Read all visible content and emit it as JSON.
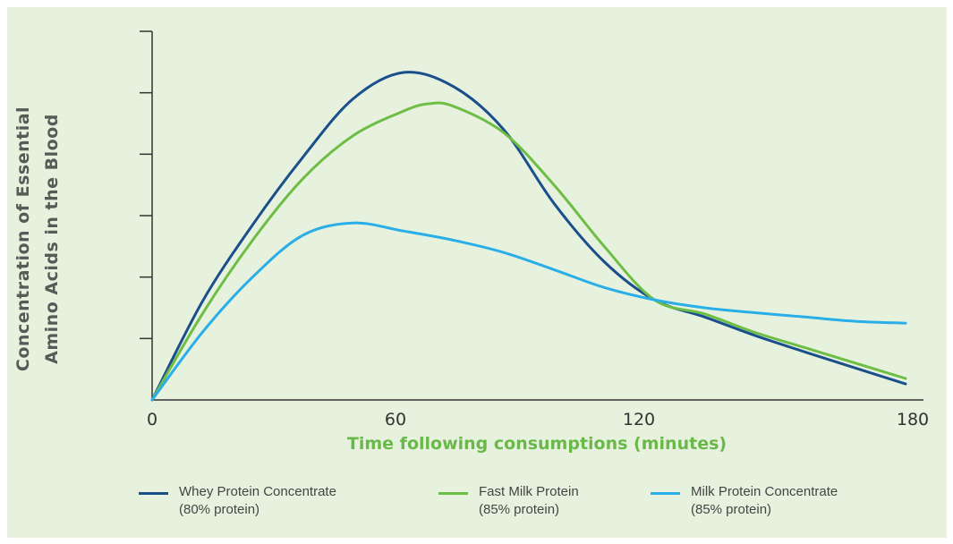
{
  "chart_data": {
    "type": "line",
    "title": "",
    "xlabel": "Time following consumptions (minutes)",
    "ylabel_lines": [
      "Concentration of Essential",
      "Amino Acids in the Blood"
    ],
    "x_ticks": [
      "0",
      "60",
      "120",
      "180"
    ],
    "xlim": [
      0,
      180
    ],
    "ylim": [
      0,
      6
    ],
    "y_tick_count": 6,
    "y_tick_labels_shown": false,
    "grid": false,
    "legend_position": "bottom",
    "series": [
      {
        "name": "Whey Protein Concentrate",
        "name_line2": "(80% protein)",
        "color": "#1b4f8c",
        "points": [
          [
            0,
            0
          ],
          [
            12,
            1.6
          ],
          [
            24,
            2.85
          ],
          [
            36,
            3.95
          ],
          [
            48,
            4.9
          ],
          [
            60,
            5.33
          ],
          [
            72,
            5.1
          ],
          [
            84,
            4.4
          ],
          [
            96,
            3.2
          ],
          [
            108,
            2.25
          ],
          [
            120,
            1.63
          ],
          [
            132,
            1.35
          ],
          [
            144,
            1.05
          ],
          [
            156,
            0.78
          ],
          [
            168,
            0.52
          ],
          [
            180,
            0.26
          ]
        ]
      },
      {
        "name": "Fast Milk Protein",
        "name_line2": "(85% protein)",
        "color": "#6ebd45",
        "points": [
          [
            0,
            0
          ],
          [
            12,
            1.4
          ],
          [
            24,
            2.6
          ],
          [
            36,
            3.6
          ],
          [
            48,
            4.3
          ],
          [
            60,
            4.7
          ],
          [
            66,
            4.82
          ],
          [
            72,
            4.78
          ],
          [
            84,
            4.35
          ],
          [
            96,
            3.5
          ],
          [
            108,
            2.5
          ],
          [
            120,
            1.63
          ],
          [
            132,
            1.4
          ],
          [
            144,
            1.1
          ],
          [
            156,
            0.85
          ],
          [
            168,
            0.6
          ],
          [
            180,
            0.35
          ]
        ]
      },
      {
        "name": "Milk Protein Concentrate",
        "name_line2": "(85% protein)",
        "color": "#2aaee8",
        "points": [
          [
            0,
            0
          ],
          [
            12,
            1.1
          ],
          [
            24,
            2.0
          ],
          [
            36,
            2.68
          ],
          [
            48,
            2.88
          ],
          [
            60,
            2.75
          ],
          [
            72,
            2.6
          ],
          [
            84,
            2.4
          ],
          [
            96,
            2.12
          ],
          [
            108,
            1.83
          ],
          [
            120,
            1.63
          ],
          [
            132,
            1.5
          ],
          [
            144,
            1.42
          ],
          [
            156,
            1.35
          ],
          [
            168,
            1.28
          ],
          [
            180,
            1.25
          ]
        ]
      }
    ]
  }
}
